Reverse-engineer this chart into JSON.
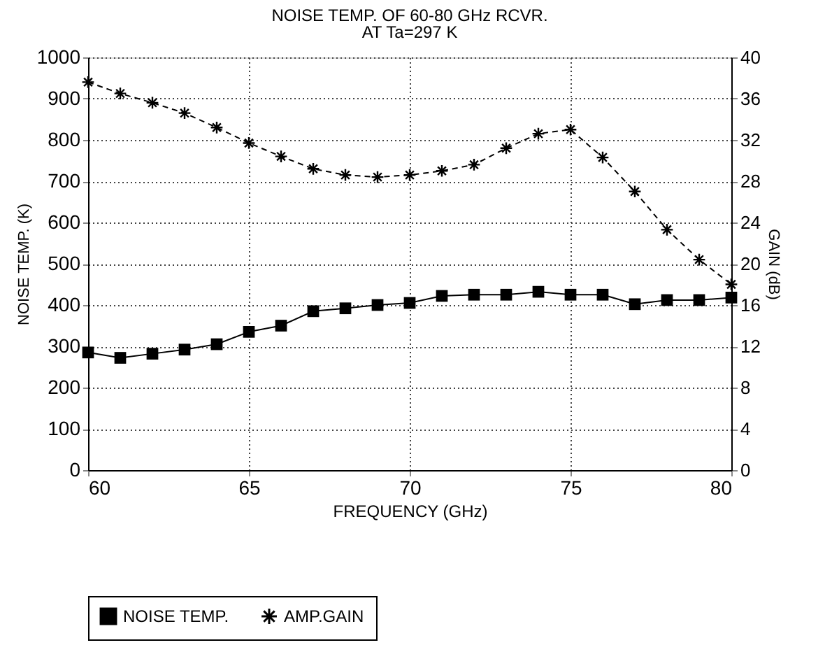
{
  "chart_data": {
    "type": "line",
    "title": "NOISE TEMP. OF 60-80 GHz RCVR.",
    "subtitle": "AT Ta=297 K",
    "xlabel": "FREQUENCY (GHz)",
    "ylabel": "NOISE TEMP. (K)",
    "y2label": "GAIN (dB)",
    "x": [
      60,
      61,
      62,
      63,
      64,
      65,
      66,
      67,
      68,
      69,
      70,
      71,
      72,
      73,
      74,
      75,
      76,
      77,
      78,
      79,
      80
    ],
    "series": [
      {
        "name": "NOISE TEMP.",
        "color": "#000000",
        "marker": "square",
        "line_style": "solid",
        "values": [
          285,
          272,
          282,
          292,
          305,
          335,
          350,
          385,
          392,
          400,
          405,
          422,
          425,
          425,
          432,
          425,
          425,
          402,
          412,
          412,
          418
        ]
      },
      {
        "name": "AMP.GAIN",
        "color": "#000000",
        "marker": "cross",
        "line_style": "dashed",
        "axis": "y2",
        "values": [
          37.6,
          36.5,
          35.6,
          34.6,
          33.2,
          31.7,
          30.4,
          29.2,
          28.6,
          28.4,
          28.6,
          29.0,
          29.6,
          31.2,
          32.6,
          33.0,
          30.3,
          27.0,
          23.3,
          20.4,
          18.0
        ]
      }
    ],
    "xlim": [
      60,
      80
    ],
    "xticks": [
      60,
      65,
      70,
      75,
      80
    ],
    "ylim": [
      0,
      1000
    ],
    "yticks": [
      0,
      100,
      200,
      300,
      400,
      500,
      600,
      700,
      800,
      900,
      1000
    ],
    "y2lim": [
      0,
      40
    ],
    "y2ticks": [
      0,
      4,
      8,
      12,
      16,
      20,
      24,
      28,
      32,
      36,
      40
    ],
    "grid": true,
    "legend": "bottom"
  }
}
